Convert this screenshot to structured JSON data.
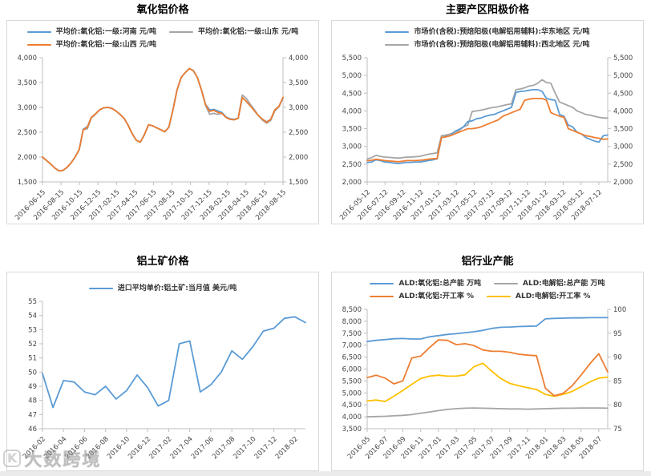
{
  "watermark": {
    "icon_letter": "K",
    "text": "大数跨境"
  },
  "colors": {
    "blue": "#5B9BD5",
    "gray": "#A5A5A5",
    "orange": "#ED7D31",
    "yellow": "#FFC000",
    "axis_line": "#BFBFBF",
    "tick_text": "#444444",
    "panel_border": "#D9D9D9"
  },
  "chart_data": [
    {
      "id": "alumina-price",
      "type": "line",
      "title": "氧化铝价格",
      "legend_rows": [
        [
          {
            "label": "平均价:氧化铝:一级:河南 元/吨",
            "color": "blue"
          },
          {
            "label": "平均价:氧化铝:一级:山东 元/吨",
            "color": "gray"
          }
        ],
        [
          {
            "label": "平均价:氧化铝:一级:山西 元/吨",
            "color": "orange"
          }
        ]
      ],
      "x_tick_labels": [
        "2016-06-15",
        "2016-08-15",
        "2016-10-15",
        "2016-12-15",
        "2017-02-15",
        "2017-04-15",
        "2017-06-15",
        "2017-08-15",
        "2017-10-15",
        "2017-12-15",
        "2018-02-15",
        "2018-04-15",
        "2018-06-15",
        "2018-08-15"
      ],
      "x_label_span": 1,
      "y_left": {
        "min": 1500,
        "max": 4000,
        "step": 500,
        "comma": true
      },
      "y_right": {
        "min": 1500,
        "max": 4000,
        "step": 500,
        "comma": true
      },
      "series": [
        {
          "name": "平均价:氧化铝:一级:山东 元/吨",
          "color": "gray",
          "axis": "left",
          "values": [
            2000,
            1930,
            1860,
            1780,
            1725,
            1730,
            1790,
            1880,
            2000,
            2150,
            2550,
            2570,
            2790,
            2860,
            2950,
            2990,
            3000,
            2980,
            2930,
            2860,
            2780,
            2640,
            2470,
            2340,
            2300,
            2450,
            2650,
            2630,
            2590,
            2550,
            2510,
            2600,
            2950,
            3350,
            3600,
            3700,
            3780,
            3740,
            3600,
            3350,
            3040,
            2860,
            2880,
            2860,
            2880,
            2800,
            2760,
            2750,
            2780,
            3250,
            3180,
            3060,
            2950,
            2830,
            2740,
            2680,
            2740,
            2930,
            3010,
            3200
          ]
        },
        {
          "name": "平均价:氧化铝:一级:河南 元/吨",
          "color": "blue",
          "axis": "left",
          "values": [
            2000,
            1930,
            1860,
            1780,
            1725,
            1730,
            1790,
            1880,
            2000,
            2150,
            2560,
            2610,
            2800,
            2870,
            2950,
            2990,
            3000,
            2980,
            2930,
            2860,
            2780,
            2640,
            2470,
            2340,
            2300,
            2450,
            2650,
            2630,
            2590,
            2550,
            2510,
            2600,
            2950,
            3350,
            3600,
            3700,
            3780,
            3740,
            3600,
            3350,
            3060,
            2950,
            2960,
            2930,
            2900,
            2810,
            2770,
            2760,
            2780,
            3200,
            3120,
            3030,
            2930,
            2830,
            2760,
            2710,
            2760,
            2950,
            3020,
            3190
          ]
        },
        {
          "name": "平均价:氧化铝:一级:山西 元/吨",
          "color": "orange",
          "axis": "left",
          "values": [
            2000,
            1930,
            1860,
            1780,
            1725,
            1730,
            1790,
            1880,
            2000,
            2150,
            2550,
            2600,
            2800,
            2870,
            2950,
            2990,
            3000,
            2980,
            2930,
            2860,
            2780,
            2640,
            2470,
            2340,
            2300,
            2450,
            2650,
            2630,
            2590,
            2550,
            2510,
            2600,
            2950,
            3350,
            3600,
            3700,
            3780,
            3740,
            3600,
            3350,
            3050,
            2920,
            2940,
            2900,
            2880,
            2800,
            2760,
            2750,
            2780,
            3200,
            3120,
            3030,
            2930,
            2830,
            2760,
            2700,
            2760,
            2950,
            3020,
            3200
          ]
        }
      ]
    },
    {
      "id": "anode-price",
      "type": "line",
      "title": "主要产区阳极价格",
      "legend_rows": [
        [
          {
            "label": "市场价(含税):预焙阳极(电解铝用辅料):华东地区 元/吨",
            "color": "blue"
          }
        ],
        [
          {
            "label": "市场价(含税):预焙阳极(电解铝用辅料):西北地区 元/吨",
            "color": "gray"
          }
        ]
      ],
      "x_tick_labels": [
        "2016-05-12",
        "2016-07-12",
        "2016-09-12",
        "2016-11-12",
        "2017-01-12",
        "2017-03-12",
        "2017-05-12",
        "2017-07-12",
        "2017-09-12",
        "2017-11-12",
        "2018-01-12",
        "2018-03-12",
        "2018-05-12",
        "2018-07-12"
      ],
      "x_label_span": 0.963,
      "y_left": {
        "min": 2000,
        "max": 5500,
        "step": 500,
        "comma": true
      },
      "y_right": {
        "min": 2000,
        "max": 5500,
        "step": 500,
        "comma": true
      },
      "series": [
        {
          "name": "市场价(含税):预焙阳极(电解铝用辅料):西北地区 元/吨",
          "color": "gray",
          "axis": "left",
          "values": [
            2650,
            2680,
            2750,
            2720,
            2700,
            2690,
            2680,
            2670,
            2680,
            2700,
            2700,
            2710,
            2720,
            2750,
            2780,
            2800,
            2820,
            3300,
            3320,
            3350,
            3400,
            3450,
            3550,
            3600,
            3980,
            4000,
            4020,
            4050,
            4080,
            4100,
            4120,
            4150,
            4180,
            4200,
            4600,
            4620,
            4650,
            4700,
            4720,
            4780,
            4880,
            4800,
            4780,
            4500,
            4250,
            4200,
            4150,
            4100,
            4000,
            3950,
            3900,
            3880,
            3850,
            3820,
            3800,
            3800
          ]
        },
        {
          "name": "市场价(含税):预焙阳极(电解铝用辅料):华东地区 元/吨",
          "color": "blue",
          "axis": "left",
          "values": [
            2550,
            2560,
            2620,
            2600,
            2560,
            2550,
            2530,
            2520,
            2530,
            2550,
            2550,
            2560,
            2560,
            2580,
            2600,
            2620,
            2650,
            3250,
            3280,
            3300,
            3420,
            3480,
            3550,
            3700,
            3720,
            3780,
            3800,
            3850,
            3880,
            3900,
            3950,
            4000,
            4050,
            4100,
            4520,
            4550,
            4560,
            4580,
            4600,
            4600,
            4550,
            4350,
            4320,
            4300,
            3900,
            3850,
            3600,
            3550,
            3400,
            3350,
            3250,
            3200,
            3150,
            3120,
            3300,
            3320
          ]
        },
        {
          "name": "",
          "color": "orange",
          "axis": "left",
          "values": [
            2600,
            2610,
            2640,
            2620,
            2600,
            2590,
            2580,
            2570,
            2580,
            2600,
            2600,
            2600,
            2610,
            2620,
            2640,
            2650,
            2660,
            3250,
            3270,
            3300,
            3350,
            3400,
            3450,
            3500,
            3500,
            3520,
            3550,
            3600,
            3650,
            3700,
            3750,
            3850,
            3900,
            3950,
            4000,
            4050,
            4300,
            4330,
            4350,
            4350,
            4350,
            4300,
            3950,
            3900,
            3850,
            3820,
            3500,
            3450,
            3400,
            3350,
            3300,
            3280,
            3250,
            3230,
            3200,
            3210
          ]
        }
      ]
    },
    {
      "id": "bauxite-price",
      "type": "line",
      "title": "铝土矿价格",
      "legend_rows": [
        [
          {
            "label": "进口平均单价:铝土矿:当月值 美元/吨",
            "color": "blue"
          }
        ]
      ],
      "x_tick_labels": [
        "2016-02",
        "2016-04",
        "2016-06",
        "2016-08",
        "2016-10",
        "2016-12",
        "2017-02",
        "2017-04",
        "2017-06",
        "2017-08",
        "2017-10",
        "2017-12",
        "2018-02"
      ],
      "x_label_span": 0.96,
      "y_left": {
        "min": 46,
        "max": 55,
        "step": 1,
        "comma": false
      },
      "y_right": null,
      "series": [
        {
          "name": "进口平均单价:铝土矿:当月值 美元/吨",
          "color": "blue",
          "axis": "left",
          "values": [
            49.9,
            47.5,
            49.4,
            49.3,
            48.6,
            48.4,
            49.0,
            48.1,
            48.7,
            49.8,
            48.9,
            47.6,
            48.0,
            52.0,
            52.2,
            48.6,
            49.1,
            50.0,
            51.5,
            50.9,
            51.8,
            52.9,
            53.1,
            53.8,
            53.9,
            53.5
          ]
        }
      ]
    },
    {
      "id": "aluminum-capacity",
      "type": "line",
      "title": "铝行业产能",
      "legend_rows": [
        [
          {
            "label": "ALD:氧化铝:总产能 万吨",
            "color": "blue"
          },
          {
            "label": "ALD:电解铝:总产能 万吨",
            "color": "gray"
          }
        ],
        [
          {
            "label": "ALD:氧化铝:开工率 %",
            "color": "orange"
          },
          {
            "label": "ALD:电解铝:开工率 %",
            "color": "yellow"
          }
        ]
      ],
      "x_tick_labels": [
        "2016-05",
        "2016-07",
        "2016-09",
        "2016-11",
        "2017-01",
        "2017-03",
        "2017-05",
        "2017-07",
        "2017-09",
        "2017-11",
        "2018-01",
        "2018-03",
        "2018-05",
        "2018-07"
      ],
      "x_label_span": 0.963,
      "y_left": {
        "min": 3500,
        "max": 8500,
        "step": 500,
        "comma": true
      },
      "y_right": {
        "min": 75,
        "max": 100,
        "step": 5,
        "comma": false
      },
      "series": [
        {
          "name": "ALD:电解铝:总产能 万吨",
          "color": "gray",
          "axis": "left",
          "values": [
            4000,
            4010,
            4020,
            4040,
            4060,
            4090,
            4150,
            4200,
            4260,
            4310,
            4340,
            4360,
            4370,
            4360,
            4350,
            4340,
            4330,
            4330,
            4320,
            4330,
            4340,
            4350,
            4360,
            4360,
            4370,
            4370,
            4370,
            4360
          ]
        },
        {
          "name": "ALD:氧化铝:总产能 万吨",
          "color": "blue",
          "axis": "left",
          "values": [
            7150,
            7200,
            7230,
            7270,
            7280,
            7260,
            7260,
            7350,
            7400,
            7450,
            7480,
            7520,
            7560,
            7620,
            7700,
            7750,
            7760,
            7780,
            7790,
            7800,
            8100,
            8120,
            8130,
            8140,
            8140,
            8150,
            8150,
            8150
          ]
        },
        {
          "name": "ALD:电解铝:开工率 %",
          "color": "yellow",
          "axis": "right",
          "values": [
            80.8,
            81.0,
            80.7,
            81.8,
            83.0,
            84.3,
            85.5,
            86.0,
            86.2,
            86.0,
            86.0,
            86.3,
            88.0,
            88.7,
            87.0,
            85.5,
            84.5,
            84.0,
            83.6,
            83.2,
            82.2,
            81.8,
            82.2,
            82.8,
            83.8,
            84.8,
            85.6,
            85.8
          ]
        },
        {
          "name": "ALD:氧化铝:开工率 %",
          "color": "orange",
          "axis": "right",
          "values": [
            85.7,
            86.2,
            85.6,
            84.4,
            85.0,
            89.8,
            90.2,
            92.0,
            93.6,
            93.5,
            92.6,
            92.8,
            92.4,
            91.5,
            91.2,
            91.2,
            91.0,
            90.6,
            90.4,
            90.3,
            83.5,
            81.9,
            82.4,
            84.0,
            86.2,
            88.6,
            90.7,
            86.9
          ]
        }
      ]
    }
  ]
}
